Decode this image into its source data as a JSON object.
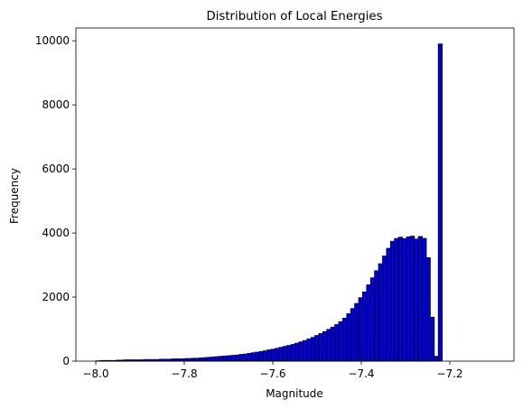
{
  "chart_data": {
    "type": "bar",
    "title": "Distribution of Local Energies",
    "xlabel": "Magnitude",
    "ylabel": "Frequency",
    "xlim": [
      -8.045,
      -7.055
    ],
    "ylim": [
      0,
      10400
    ],
    "x_ticks": [
      -8.0,
      -7.8,
      -7.6,
      -7.4,
      -7.2
    ],
    "x_tick_labels": [
      "−8.0",
      "−7.8",
      "−7.6",
      "−7.4",
      "−7.2"
    ],
    "y_ticks": [
      0,
      2000,
      4000,
      6000,
      8000,
      10000
    ],
    "y_tick_labels": [
      "0",
      "2000",
      "4000",
      "6000",
      "8000",
      "10000"
    ],
    "bin_range": [
      -8.0,
      -7.1
    ],
    "bin_width": 0.009,
    "counts": [
      10,
      20,
      20,
      20,
      20,
      30,
      30,
      40,
      40,
      40,
      40,
      40,
      50,
      50,
      50,
      50,
      60,
      60,
      60,
      70,
      70,
      70,
      80,
      80,
      90,
      90,
      100,
      110,
      120,
      130,
      140,
      150,
      160,
      170,
      180,
      190,
      210,
      220,
      240,
      260,
      280,
      300,
      320,
      350,
      370,
      400,
      430,
      460,
      490,
      520,
      560,
      600,
      640,
      690,
      740,
      800,
      860,
      920,
      990,
      1060,
      1140,
      1230,
      1340,
      1480,
      1640,
      1800,
      1980,
      2160,
      2380,
      2600,
      2820,
      3040,
      3280,
      3520,
      3740,
      3830,
      3870,
      3820,
      3880,
      3900,
      3810,
      3890,
      3830,
      3230,
      1370,
      150,
      9900,
      0,
      0,
      0,
      0,
      0,
      0,
      0,
      0,
      0,
      0,
      0,
      0,
      0
    ],
    "bar_color": "#0000dd",
    "edge_color": "#000000",
    "grid": false,
    "legend": "none"
  }
}
